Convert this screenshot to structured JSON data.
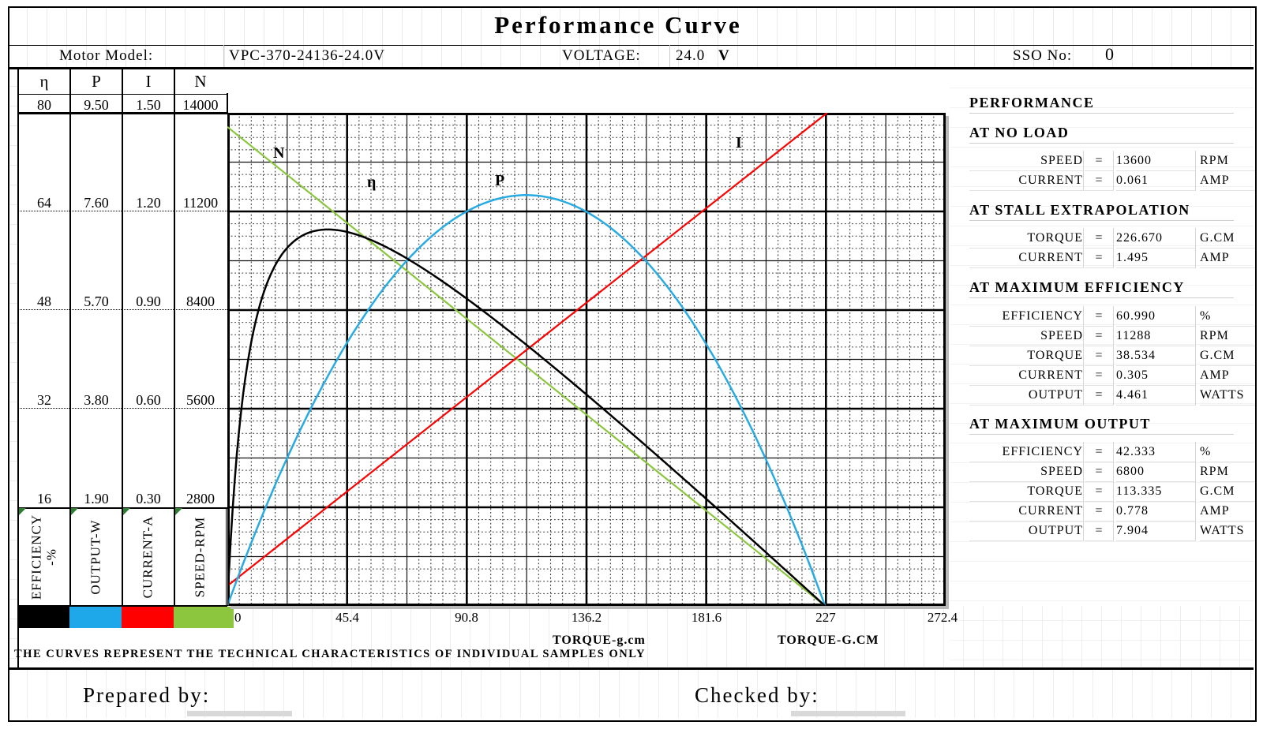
{
  "title": "Performance Curve",
  "header": {
    "motor_model_label": "Motor Model:",
    "motor_model_value": "VPC-370-24136-24.0V",
    "voltage_label": "VOLTAGE:",
    "voltage_value": "24.0",
    "voltage_unit": "V",
    "sso_label": "SSO No:",
    "sso_value": "0"
  },
  "axis_table": {
    "col_headers": [
      "η",
      "P",
      "I",
      "N"
    ],
    "rows": [
      [
        "80",
        "9.50",
        "1.50",
        "14000"
      ],
      [
        "64",
        "7.60",
        "1.20",
        "11200"
      ],
      [
        "48",
        "5.70",
        "0.90",
        "8400"
      ],
      [
        "32",
        "3.80",
        "0.60",
        "5600"
      ],
      [
        "16",
        "1.90",
        "0.30",
        "2800"
      ]
    ],
    "col_labels": [
      {
        "l1": "EFFICIENCY",
        "l2": "-%"
      },
      {
        "l1": "OUTPUT-W",
        "l2": ""
      },
      {
        "l1": "CURRENT-A",
        "l2": ""
      },
      {
        "l1": "SPEED-RPM",
        "l2": ""
      }
    ],
    "swatch_colors": [
      "#000000",
      "#1FA8E9",
      "#FF0000",
      "#8CC63F"
    ]
  },
  "chart_data": {
    "type": "line",
    "title": "Performance Curve",
    "xlabel": "TORQUE-g.cm",
    "x_ticks": [
      "0",
      "45.4",
      "90.8",
      "136.2",
      "181.6",
      "227",
      "272.4"
    ],
    "axes": {
      "torque": {
        "min": 0,
        "max": 272.4,
        "unit": "g.cm"
      },
      "efficiency": {
        "min": 0,
        "max": 80,
        "unit": "%"
      },
      "power": {
        "min": 0,
        "max": 9.5,
        "unit": "W"
      },
      "current": {
        "min": 0,
        "max": 1.5,
        "unit": "A"
      },
      "speed": {
        "min": 0,
        "max": 14000,
        "unit": "RPM"
      }
    },
    "grid": {
      "x_major": 45.4,
      "x_sub": 22.7,
      "x_minor": 4.54,
      "y_major_divs": 5,
      "y_sub_divs": 10,
      "y_minor_divs": 40
    },
    "motor": {
      "voltage": 24.0,
      "no_load_speed": 13600,
      "no_load_current": 0.061,
      "stall_torque": 226.67,
      "stall_current": 1.495
    },
    "curve_labels": {
      "n": "N",
      "eta": "η",
      "p": "P",
      "i": "I"
    },
    "colors": {
      "efficiency": "#000000",
      "power": "#29ABE2",
      "current": "#FF0000",
      "speed": "#8CC63F"
    },
    "series": [
      {
        "name": "speed-N-rpm",
        "x": [
          0,
          45.4,
          90.8,
          136.2,
          181.6,
          226.7
        ],
        "values": [
          13600,
          10876,
          8152,
          5428,
          2704,
          0
        ]
      },
      {
        "name": "current-I-amp",
        "x": [
          0,
          45.4,
          90.8,
          136.2,
          181.6,
          226.7
        ],
        "values": [
          0.061,
          0.348,
          0.635,
          0.923,
          1.21,
          1.495
        ]
      },
      {
        "name": "output-P-watts",
        "x": [
          0,
          22.7,
          45.4,
          68.1,
          90.8,
          113.4,
          136.2,
          158.9,
          181.6,
          204.3,
          226.7
        ],
        "values": [
          0,
          2.85,
          5.07,
          6.65,
          7.6,
          7.92,
          7.59,
          6.64,
          5.04,
          2.82,
          0
        ]
      },
      {
        "name": "efficiency-eta-pct",
        "x": [
          0,
          22.7,
          45.4,
          68.1,
          90.8,
          113.4,
          136.2,
          158.9,
          181.6,
          204.3,
          226.7
        ],
        "values": [
          0,
          58.1,
          60.7,
          56.4,
          49.9,
          42.4,
          34.3,
          25.9,
          17.4,
          8.7,
          0
        ]
      }
    ]
  },
  "x_axis_labels": {
    "lower": "TORQUE-g.cm",
    "upper": "TORQUE-G.CM"
  },
  "performance": {
    "title": "PERFORMANCE",
    "sections": [
      {
        "title": "AT NO LOAD",
        "rows": [
          {
            "label": "SPEED",
            "eq": "=",
            "value": "13600",
            "unit": "RPM"
          },
          {
            "label": "CURRENT",
            "eq": "=",
            "value": "0.061",
            "unit": "AMP"
          }
        ]
      },
      {
        "title": "AT STALL EXTRAPOLATION",
        "rows": [
          {
            "label": "TORQUE",
            "eq": "=",
            "value": "226.670",
            "unit": "G.CM"
          },
          {
            "label": "CURRENT",
            "eq": "=",
            "value": "1.495",
            "unit": "AMP"
          }
        ]
      },
      {
        "title": "AT MAXIMUM EFFICIENCY",
        "rows": [
          {
            "label": "EFFICIENCY",
            "eq": "=",
            "value": "60.990",
            "unit": "%"
          },
          {
            "label": "SPEED",
            "eq": "=",
            "value": "11288",
            "unit": "RPM"
          },
          {
            "label": "TORQUE",
            "eq": "=",
            "value": "38.534",
            "unit": "G.CM"
          },
          {
            "label": "CURRENT",
            "eq": "=",
            "value": "0.305",
            "unit": "AMP"
          },
          {
            "label": "OUTPUT",
            "eq": "=",
            "value": "4.461",
            "unit": "WATTS"
          }
        ]
      },
      {
        "title": "AT MAXIMUM OUTPUT",
        "rows": [
          {
            "label": "EFFICIENCY",
            "eq": "=",
            "value": "42.333",
            "unit": "%"
          },
          {
            "label": "SPEED",
            "eq": "=",
            "value": "6800",
            "unit": "RPM"
          },
          {
            "label": "TORQUE",
            "eq": "=",
            "value": "113.335",
            "unit": "G.CM"
          },
          {
            "label": "CURRENT",
            "eq": "=",
            "value": "0.778",
            "unit": "AMP"
          },
          {
            "label": "OUTPUT",
            "eq": "=",
            "value": "7.904",
            "unit": "WATTS"
          }
        ]
      }
    ]
  },
  "disclaimer": "THE CURVES REPRESENT THE TECHNICAL CHARACTERISTICS OF INDIVIDUAL SAMPLES ONLY",
  "footer": {
    "prepared_label": "Prepared by:",
    "checked_label": "Checked by:"
  }
}
